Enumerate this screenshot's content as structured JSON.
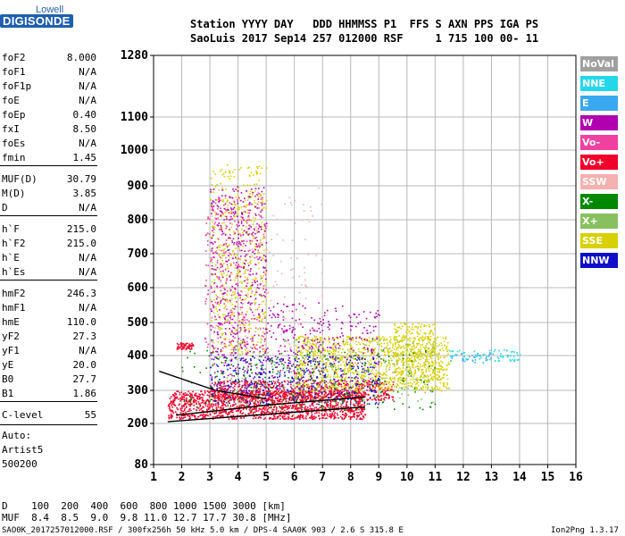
{
  "logo": {
    "top": "Lowell",
    "main": "DIGISONDE"
  },
  "header": {
    "line1": "Station YYYY DAY   DDD HHMMSS P1  FFS S AXN PPS IGA PS",
    "line2": "SaoLuis 2017 Sep14 257 012000 RSF     1 715 100 00- 11"
  },
  "params": [
    {
      "name": "foF2",
      "value": "8.000"
    },
    {
      "name": "foF1",
      "value": "N/A"
    },
    {
      "name": "foF1p",
      "value": "N/A"
    },
    {
      "name": "foE",
      "value": "N/A"
    },
    {
      "name": "foEp",
      "value": "0.40"
    },
    {
      "name": "fxI",
      "value": "8.50"
    },
    {
      "name": "foEs",
      "value": "N/A"
    },
    {
      "name": "fmin",
      "value": "1.45"
    },
    {
      "name": "MUF(D)",
      "value": "30.79"
    },
    {
      "name": "M(D)",
      "value": "3.85"
    },
    {
      "name": "D",
      "value": "N/A"
    },
    {
      "name": "h`F",
      "value": "215.0"
    },
    {
      "name": "h`F2",
      "value": "215.0"
    },
    {
      "name": "h`E",
      "value": "N/A"
    },
    {
      "name": "h`Es",
      "value": "N/A"
    },
    {
      "name": "hmF2",
      "value": "246.3"
    },
    {
      "name": "hmF1",
      "value": "N/A"
    },
    {
      "name": "hmE",
      "value": "110.0"
    },
    {
      "name": "yF2",
      "value": "27.3"
    },
    {
      "name": "yF1",
      "value": "N/A"
    },
    {
      "name": "yE",
      "value": "20.0"
    },
    {
      "name": "B0",
      "value": "27.7"
    },
    {
      "name": "B1",
      "value": "1.86"
    },
    {
      "name": "C-level",
      "value": "55"
    }
  ],
  "autoscale": [
    "Auto:",
    "Artist5",
    "500200"
  ],
  "legend": [
    {
      "label": "NoVal",
      "color": "#a0a0a0"
    },
    {
      "label": "NNE",
      "color": "#22d8e8"
    },
    {
      "label": "E",
      "color": "#3aa8f0"
    },
    {
      "label": "W",
      "color": "#b000b0"
    },
    {
      "label": "Vo-",
      "color": "#f040a0"
    },
    {
      "label": "Vo+",
      "color": "#f0002a"
    },
    {
      "label": "SSW",
      "color": "#f5b0b0"
    },
    {
      "label": "X-",
      "color": "#008800"
    },
    {
      "label": "X+",
      "color": "#88c060"
    },
    {
      "label": "SSE",
      "color": "#d8d000"
    },
    {
      "label": "NNW",
      "color": "#1010c8"
    }
  ],
  "footer": {
    "row_d": "D    100  200  400  600  800 1000 1500 3000 [km]",
    "row_muf": "MUF  8.4  8.5  9.0  9.8 11.0 12.7 17.7 30.8 [MHz]",
    "file": "SAO0K_2017257012000.RSF / 300fx256h 50 kHz 5.0 km / DPS-4 SAA0K 903 / 2.6 S 315.8 E",
    "version": "Ion2Png 1.3.17"
  },
  "chart_data": {
    "type": "scatter",
    "xlim": [
      1,
      16
    ],
    "ylim": [
      80,
      1280
    ],
    "x_ticks": [
      "1",
      "2",
      "3",
      "4",
      "5",
      "6",
      "7",
      "8",
      "9",
      "10",
      "11",
      "12",
      "13",
      "14",
      "15",
      "16"
    ],
    "y_ticks": [
      "80",
      "200",
      "300",
      "400",
      "500",
      "600",
      "700",
      "800",
      "900",
      "1000",
      "1100",
      "1280"
    ],
    "y_tick_values": [
      80,
      200,
      300,
      400,
      500,
      600,
      700,
      800,
      900,
      1000,
      1100,
      1280
    ],
    "grid": true,
    "legend_position": "right",
    "clusters": [
      {
        "color": "#f0002a",
        "x": [
          1.5,
          8.5
        ],
        "y": [
          215,
          300
        ],
        "n": 1500
      },
      {
        "color": "#f0002a",
        "x": [
          3,
          9.5
        ],
        "y": [
          270,
          330
        ],
        "n": 700
      },
      {
        "color": "#f0002a",
        "x": [
          1.8,
          2.4
        ],
        "y": [
          420,
          440
        ],
        "n": 60
      },
      {
        "color": "#d8d000",
        "x": [
          6,
          11.5
        ],
        "y": [
          300,
          460
        ],
        "n": 1100
      },
      {
        "color": "#d8d000",
        "x": [
          3,
          5
        ],
        "y": [
          400,
          960
        ],
        "n": 550
      },
      {
        "color": "#d8d000",
        "x": [
          9.5,
          11
        ],
        "y": [
          330,
          500
        ],
        "n": 300
      },
      {
        "color": "#b000b0",
        "x": [
          3,
          5
        ],
        "y": [
          300,
          900
        ],
        "n": 500
      },
      {
        "color": "#b000b0",
        "x": [
          5,
          9
        ],
        "y": [
          300,
          560
        ],
        "n": 350
      },
      {
        "color": "#1010c8",
        "x": [
          3,
          9
        ],
        "y": [
          260,
          400
        ],
        "n": 400
      },
      {
        "color": "#f040a0",
        "x": [
          2.8,
          5
        ],
        "y": [
          420,
          880
        ],
        "n": 300
      },
      {
        "color": "#008800",
        "x": [
          2,
          11
        ],
        "y": [
          240,
          420
        ],
        "n": 250
      },
      {
        "color": "#88c060",
        "x": [
          3,
          11
        ],
        "y": [
          260,
          450
        ],
        "n": 250
      },
      {
        "color": "#22d8e8",
        "x": [
          11.5,
          14
        ],
        "y": [
          385,
          420
        ],
        "n": 70
      },
      {
        "color": "#3aa8f0",
        "x": [
          11.5,
          13
        ],
        "y": [
          380,
          410
        ],
        "n": 30
      },
      {
        "color": "#f5b0b0",
        "x": [
          3,
          7
        ],
        "y": [
          420,
          900
        ],
        "n": 150
      }
    ],
    "trace_lines": [
      {
        "color": "#000000",
        "points": [
          [
            1.5,
            205
          ],
          [
            8.5,
            250
          ]
        ]
      },
      {
        "color": "#000000",
        "points": [
          [
            1.2,
            355
          ],
          [
            3.2,
            300
          ],
          [
            5,
            275
          ]
        ]
      },
      {
        "color": "#000000",
        "points": [
          [
            1.8,
            225
          ],
          [
            5,
            255
          ],
          [
            8.5,
            280
          ]
        ]
      }
    ]
  }
}
